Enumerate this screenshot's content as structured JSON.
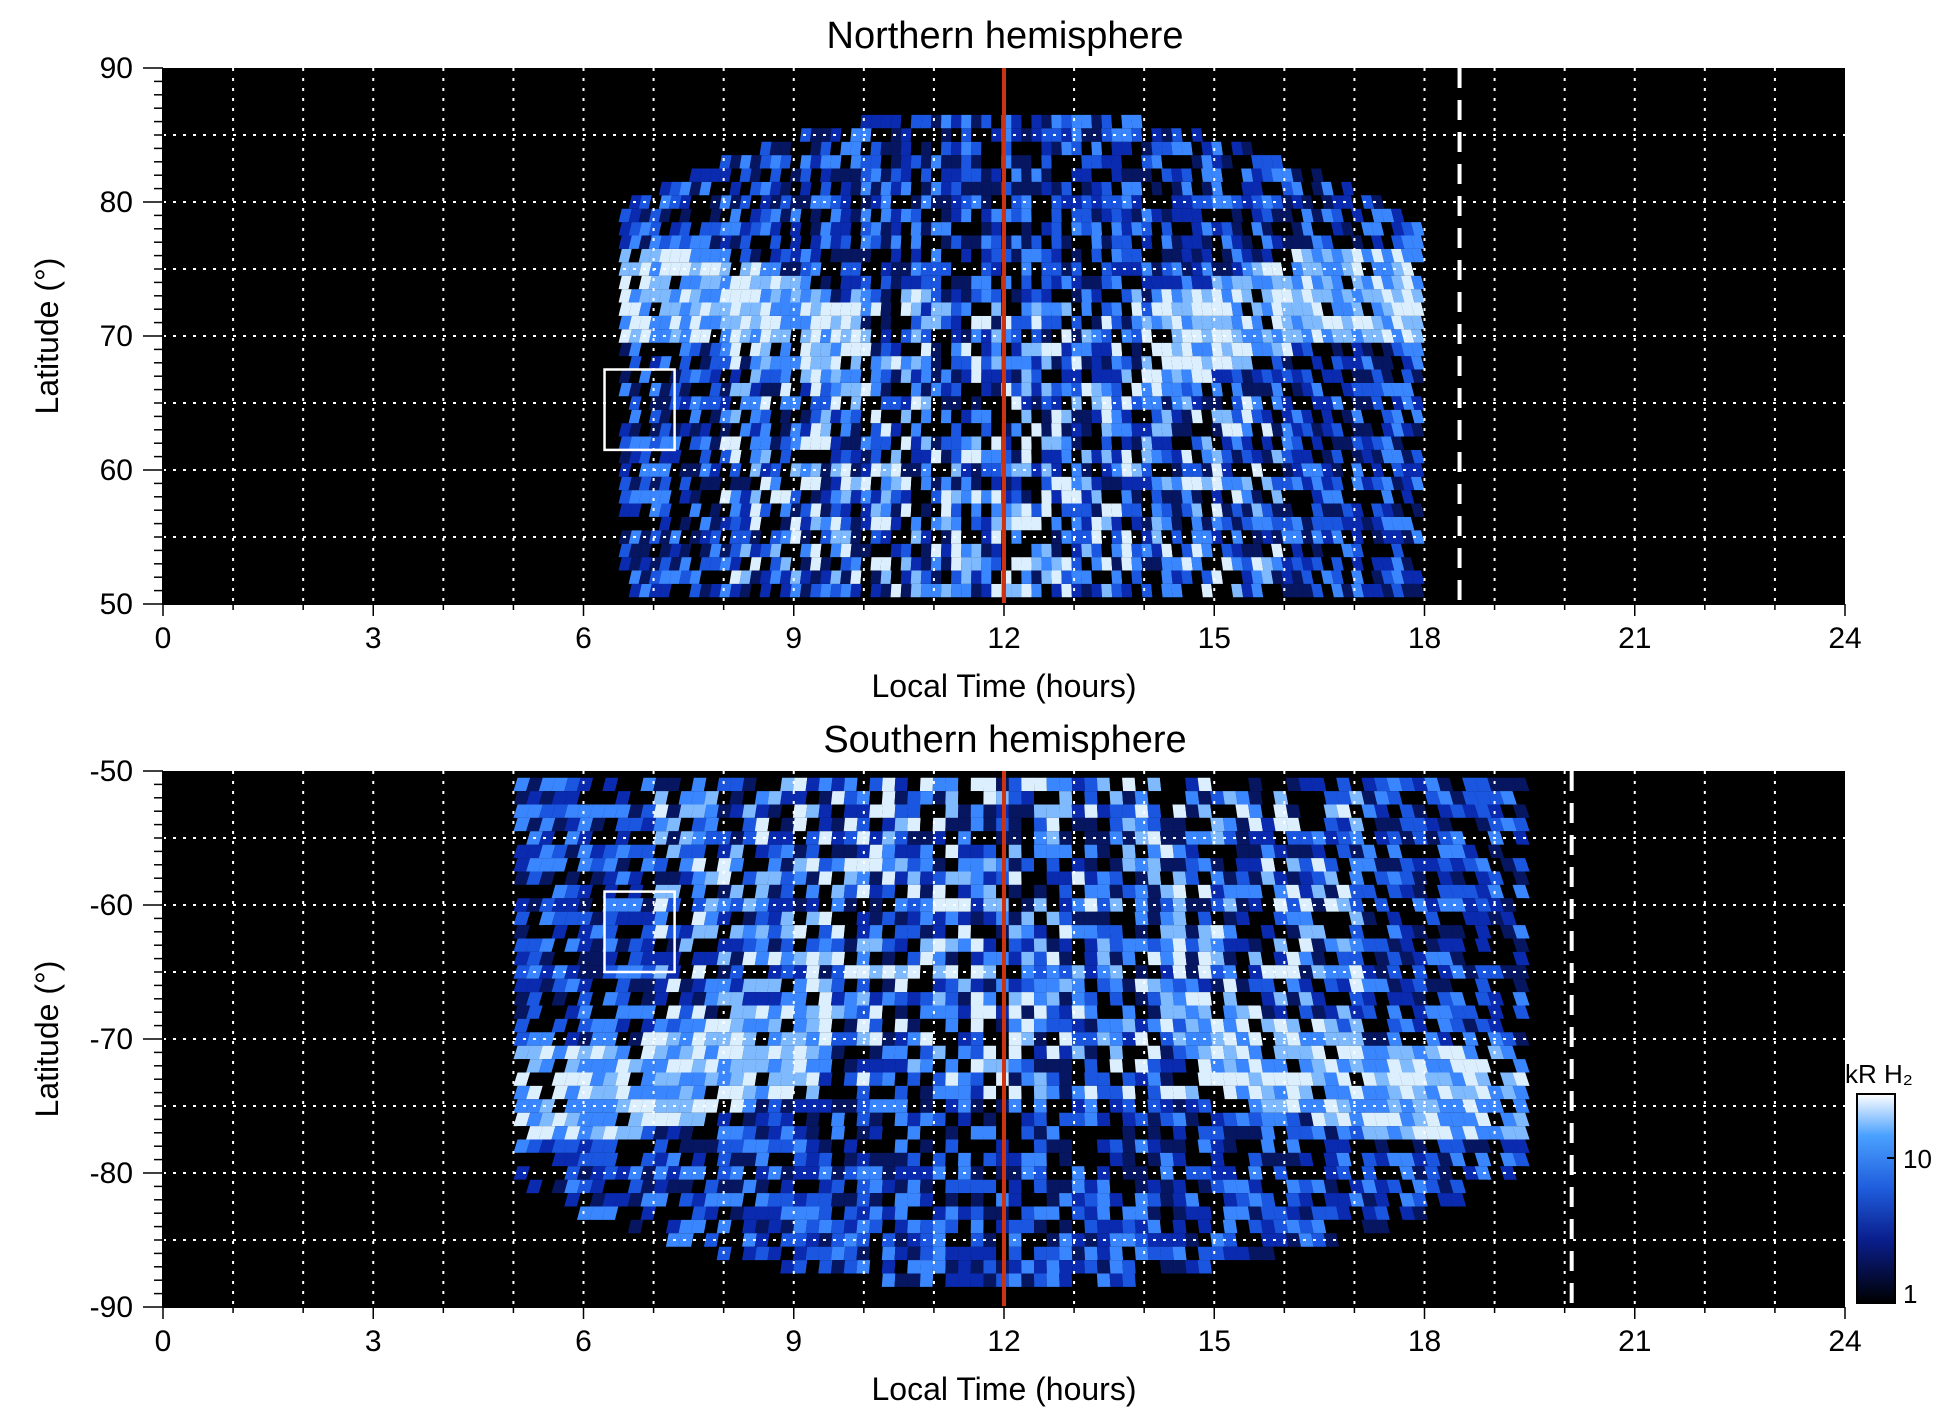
{
  "chart_data": [
    {
      "type": "heatmap",
      "title": "Northern hemisphere",
      "xlabel": "Local Time (hours)",
      "ylabel": "Latitude (°)",
      "xlim": [
        0,
        24
      ],
      "ylim": [
        50,
        90
      ],
      "xticks": [
        "0",
        "3",
        "6",
        "9",
        "12",
        "15",
        "18",
        "21",
        "24"
      ],
      "yticks": [
        "50",
        "60",
        "70",
        "80",
        "90"
      ],
      "grid": true,
      "vertical_line_local_time": 12,
      "dashed_line_local_time": 18.5,
      "box": {
        "local_time": [
          6.3,
          7.3
        ],
        "latitude": [
          61.5,
          67.5
        ]
      },
      "coverage_local_time": [
        6.5,
        18.0
      ],
      "bright_band_latitude_at_dawn_dusk": 73,
      "outer_edge_latitude_at_noon": 86.5
    },
    {
      "type": "heatmap",
      "title": "Southern hemisphere",
      "xlabel": "Local Time (hours)",
      "ylabel": "Latitude (°)",
      "xlim": [
        0,
        24
      ],
      "ylim": [
        -90,
        -50
      ],
      "xticks": [
        "0",
        "3",
        "6",
        "9",
        "12",
        "15",
        "18",
        "21",
        "24"
      ],
      "yticks": [
        "-50",
        "-60",
        "-70",
        "-80",
        "-90"
      ],
      "grid": true,
      "vertical_line_local_time": 12,
      "dashed_line_local_time": 20.1,
      "box": {
        "local_time": [
          6.3,
          7.3
        ],
        "latitude": [
          -65,
          -59
        ]
      },
      "coverage_local_time": [
        5.0,
        19.5
      ],
      "bright_band_latitude_at_dawn_dusk": -74,
      "outer_edge_latitude_at_noon": -88
    }
  ],
  "colorbar": {
    "label": "kR H₂",
    "ticks": [
      "1",
      "10"
    ],
    "scale": "log",
    "range": [
      1,
      25
    ],
    "colors": [
      "#000000",
      "#0a1e8c",
      "#1f5ddd",
      "#4aa0ff",
      "#ffffff"
    ]
  },
  "colors": {
    "noon_line": "#cc3310",
    "grid": "#ffffff",
    "background": "#000000"
  }
}
